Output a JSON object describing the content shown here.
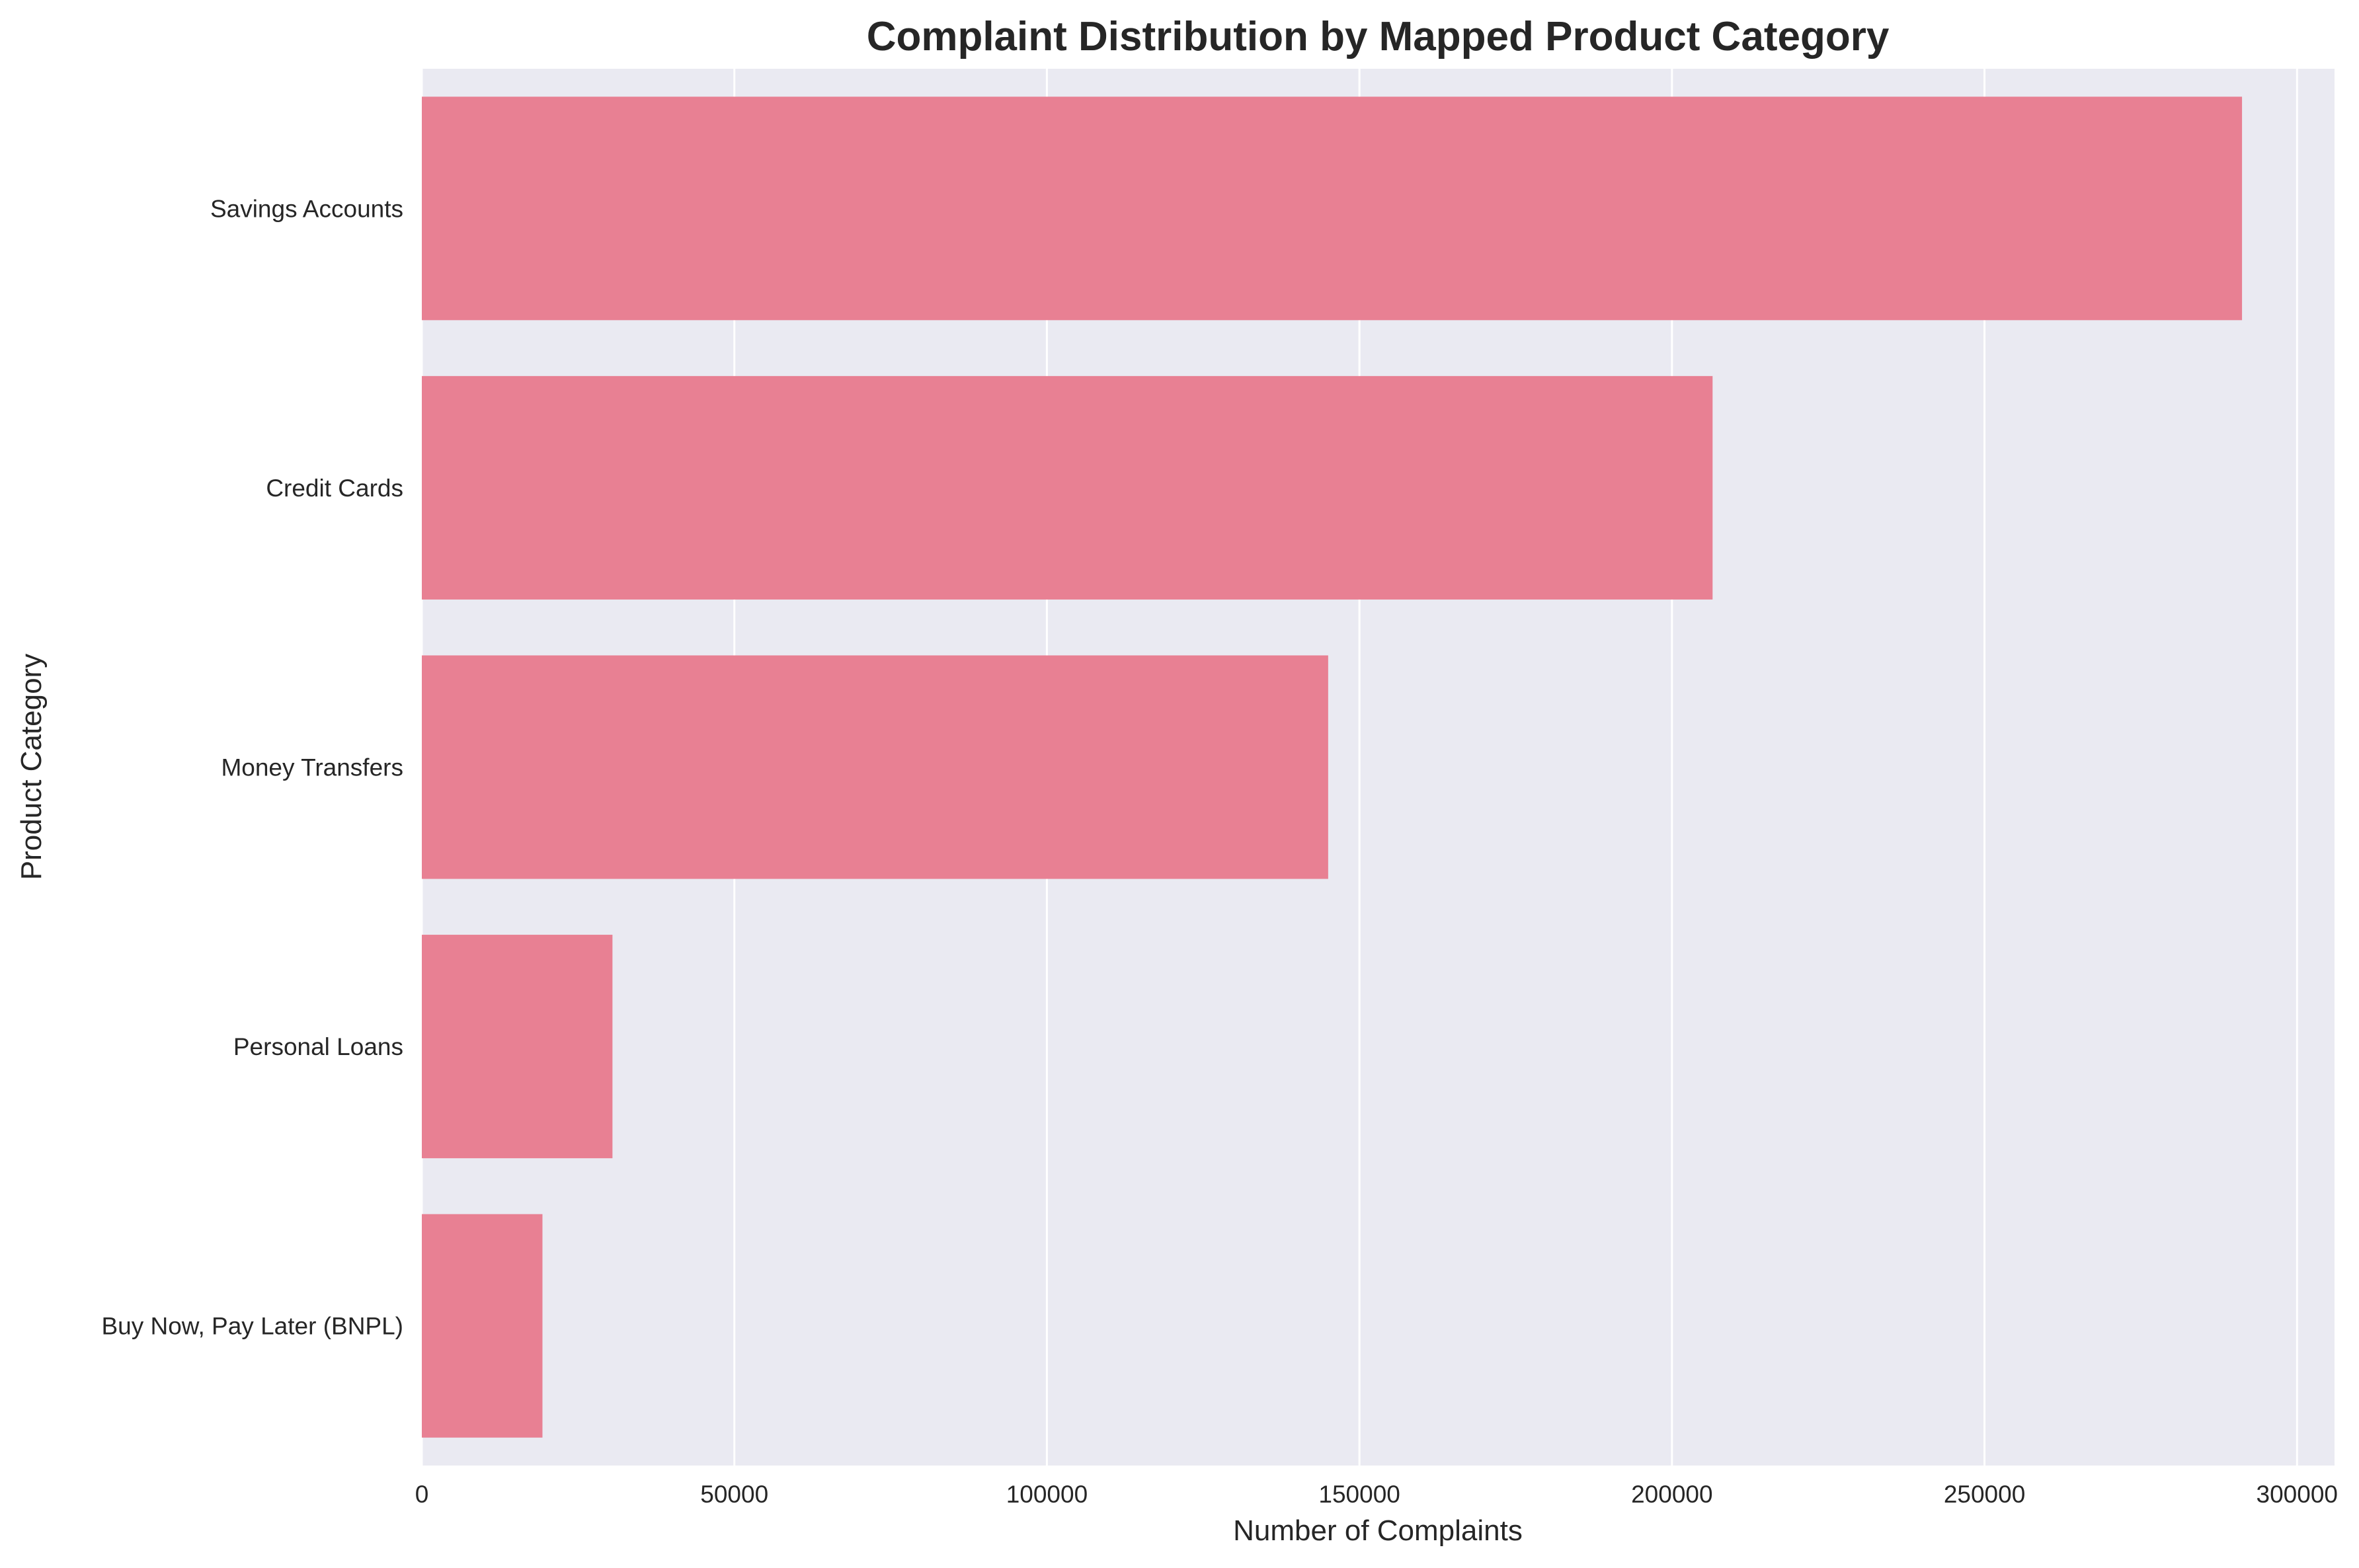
{
  "chart_data": {
    "type": "bar",
    "orientation": "horizontal",
    "title": "Complaint Distribution by Mapped Product Category",
    "xlabel": "Number of Complaints",
    "ylabel": "Product Category",
    "categories": [
      "Savings Accounts",
      "Credit Cards",
      "Money Transfers",
      "Personal Loans",
      "Buy Now, Pay Later (BNPL)"
    ],
    "values": [
      291200,
      206500,
      145000,
      30500,
      19300
    ],
    "xlim": [
      0,
      306000
    ],
    "xticks": [
      0,
      50000,
      100000,
      150000,
      200000,
      250000,
      300000
    ],
    "xtick_labels": [
      "0",
      "50000",
      "100000",
      "150000",
      "200000",
      "250000",
      "300000"
    ],
    "grid": true,
    "bar_color": "#e88093",
    "plot_background": "#eaeaf2",
    "grid_color": "#ffffff"
  }
}
